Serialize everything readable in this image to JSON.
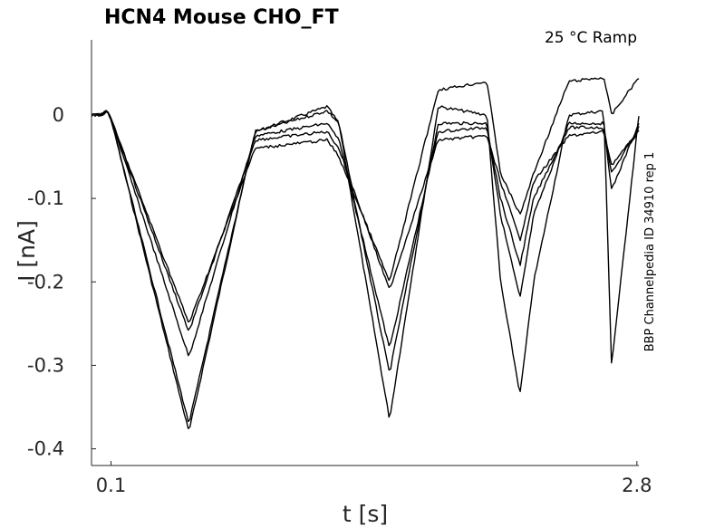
{
  "chart_data": {
    "type": "line",
    "title": "HCN4  Mouse  CHO_FT",
    "condition_label": "25 °C  Ramp",
    "side_label": "BBP Channelpedia ID 34910 rep 1",
    "xlabel": "t [s]",
    "ylabel": "I [nA]",
    "xlim": [
      0.0,
      2.81
    ],
    "ylim": [
      -0.42,
      0.09
    ],
    "x_ticks": [
      {
        "value": 0.1,
        "label": "0.1"
      },
      {
        "value": 2.8,
        "label": "2.8"
      }
    ],
    "y_ticks": [
      {
        "value": 0,
        "label": "0"
      },
      {
        "value": -0.1,
        "label": "-0.1"
      },
      {
        "value": -0.2,
        "label": "-0.2"
      },
      {
        "value": -0.3,
        "label": "-0.3"
      },
      {
        "value": -0.4,
        "label": "-0.4"
      }
    ],
    "grid": false,
    "series": [
      {
        "values_x": [
          0.0,
          0.05,
          0.08,
          0.1,
          0.5,
          0.84,
          1.21,
          1.27,
          1.53,
          1.78,
          2.03,
          2.1,
          2.2,
          2.27,
          2.45,
          2.63,
          2.67,
          2.81
        ],
        "values_y": [
          0.0,
          0.0,
          0.005,
          -0.005,
          -0.38,
          -0.02,
          0.01,
          -0.01,
          -0.365,
          0.01,
          0.0,
          -0.2,
          -0.335,
          -0.2,
          0.0,
          0.005,
          -0.3,
          0.0
        ]
      },
      {
        "values_x": [
          0.0,
          0.05,
          0.08,
          0.1,
          0.5,
          0.84,
          1.21,
          1.27,
          1.53,
          1.78,
          2.03,
          2.1,
          2.2,
          2.27,
          2.45,
          2.63,
          2.67,
          2.81
        ],
        "values_y": [
          0.0,
          0.0,
          0.005,
          -0.005,
          -0.37,
          -0.02,
          0.005,
          -0.01,
          -0.31,
          -0.01,
          -0.01,
          -0.12,
          -0.22,
          -0.12,
          -0.01,
          -0.01,
          -0.09,
          -0.01
        ]
      },
      {
        "values_x": [
          0.0,
          0.05,
          0.08,
          0.1,
          0.5,
          0.84,
          1.21,
          1.27,
          1.53,
          1.78,
          2.03,
          2.1,
          2.2,
          2.27,
          2.45,
          2.63,
          2.67,
          2.81
        ],
        "values_y": [
          0.0,
          0.0,
          0.005,
          -0.005,
          -0.29,
          -0.025,
          -0.01,
          -0.03,
          -0.28,
          -0.02,
          -0.015,
          -0.1,
          -0.18,
          -0.1,
          -0.015,
          -0.015,
          -0.07,
          -0.015
        ]
      },
      {
        "values_x": [
          0.0,
          0.05,
          0.08,
          0.1,
          0.5,
          0.84,
          1.21,
          1.27,
          1.53,
          1.78,
          2.03,
          2.1,
          2.2,
          2.27,
          2.45,
          2.63,
          2.67,
          2.81
        ],
        "values_y": [
          0.0,
          0.0,
          0.005,
          -0.005,
          -0.26,
          -0.03,
          -0.02,
          -0.04,
          -0.21,
          -0.03,
          -0.025,
          -0.08,
          -0.15,
          -0.08,
          -0.025,
          -0.02,
          -0.06,
          -0.02
        ]
      },
      {
        "values_x": [
          0.0,
          0.05,
          0.08,
          0.1,
          0.5,
          0.84,
          1.21,
          1.27,
          1.53,
          1.78,
          2.03,
          2.1,
          2.2,
          2.27,
          2.45,
          2.63,
          2.67,
          2.81
        ],
        "values_y": [
          0.0,
          0.0,
          0.005,
          -0.005,
          -0.25,
          -0.04,
          -0.03,
          -0.05,
          -0.2,
          0.03,
          0.04,
          -0.07,
          -0.12,
          -0.07,
          0.04,
          0.045,
          0.0,
          0.045
        ]
      }
    ]
  }
}
